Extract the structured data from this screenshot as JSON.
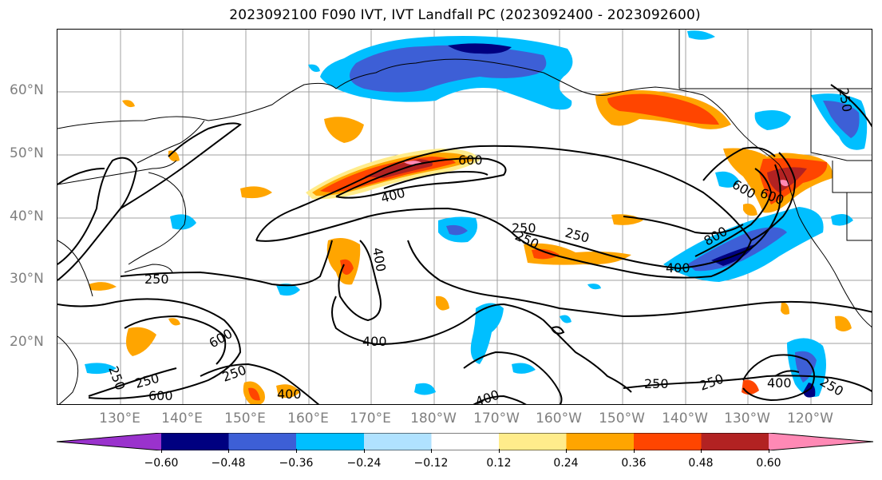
{
  "title": "2023092100 F090 IVT, IVT Landfall PC (2023092400 - 2023092600)",
  "lat_labels": [
    "60°N",
    "50°N",
    "40°N",
    "30°N",
    "20°N"
  ],
  "lon_labels": [
    "130°E",
    "140°E",
    "150°E",
    "160°E",
    "170°E",
    "180°W",
    "170°W",
    "160°W",
    "150°W",
    "140°W",
    "130°W",
    "120°W"
  ],
  "contour_labels": [
    "600",
    "400",
    "400",
    "250",
    "250",
    "250",
    "600",
    "800",
    "400",
    "250",
    "600",
    "250",
    "600",
    "400",
    "250",
    "250",
    "400",
    "250",
    "400",
    "400",
    "250",
    "250",
    "250",
    "600"
  ],
  "colorbar": {
    "ticks": [
      "−0.60",
      "−0.48",
      "−0.36",
      "−0.24",
      "−0.12",
      "0.12",
      "0.24",
      "0.36",
      "0.48",
      "0.60"
    ],
    "colors": [
      "#9a32cd",
      "#000080",
      "#3d5fd6",
      "#00bfff",
      "#b0e2ff",
      "#ffffff",
      "#ffec8b",
      "#ffa500",
      "#ff4500",
      "#b22222",
      "#ff89b5"
    ]
  },
  "colors": {
    "land_outline": "#000000",
    "grid": "#a0a0a0",
    "contour": "#000000"
  }
}
